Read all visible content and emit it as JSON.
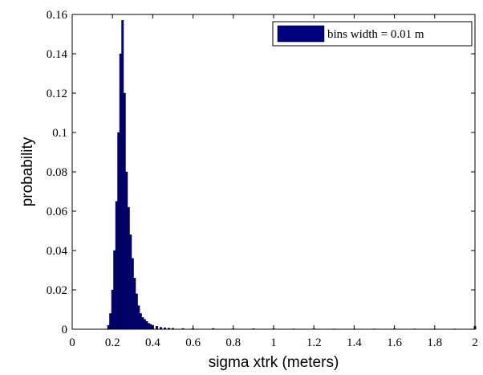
{
  "chart_data": {
    "type": "bar",
    "xlabel": "sigma xtrk (meters)",
    "ylabel": "probability",
    "xlim": [
      0,
      2
    ],
    "ylim": [
      0,
      0.16
    ],
    "xticks": [
      "0",
      "0.2",
      "0.4",
      "0.6",
      "0.8",
      "1",
      "1.2",
      "1.4",
      "1.6",
      "1.8",
      "2"
    ],
    "yticks": [
      "0",
      "0.02",
      "0.04",
      "0.06",
      "0.08",
      "0.1",
      "0.12",
      "0.14",
      "0.16"
    ],
    "grid": false,
    "legend_position": "top-right",
    "bin_width": 0.01,
    "bar_color": "#000080",
    "series": [
      {
        "name": "bins width = 0.01 m",
        "x": [
          0.18,
          0.19,
          0.2,
          0.21,
          0.22,
          0.23,
          0.24,
          0.25,
          0.26,
          0.27,
          0.28,
          0.29,
          0.3,
          0.31,
          0.32,
          0.33,
          0.34,
          0.35,
          0.36,
          0.37,
          0.38,
          0.39,
          0.4,
          0.42,
          0.44,
          0.46,
          0.48,
          0.5,
          0.55,
          0.6,
          0.7,
          0.8,
          0.9,
          1.0,
          1.1,
          1.2,
          1.3,
          1.4,
          1.5,
          1.6,
          1.7,
          1.8,
          1.9,
          2.0
        ],
        "values": [
          0.002,
          0.008,
          0.02,
          0.04,
          0.065,
          0.1,
          0.14,
          0.157,
          0.12,
          0.08,
          0.062,
          0.048,
          0.036,
          0.026,
          0.018,
          0.012,
          0.008,
          0.006,
          0.005,
          0.004,
          0.003,
          0.0025,
          0.002,
          0.0015,
          0.001,
          0.0008,
          0.0006,
          0.0005,
          0.0004,
          0.0004,
          0.0004,
          0.0003,
          0.0003,
          0.0003,
          0.0002,
          0.0003,
          0.0002,
          0.0002,
          0.0002,
          0.0003,
          0.0002,
          0.0002,
          0.0002,
          0.0015
        ]
      }
    ]
  }
}
